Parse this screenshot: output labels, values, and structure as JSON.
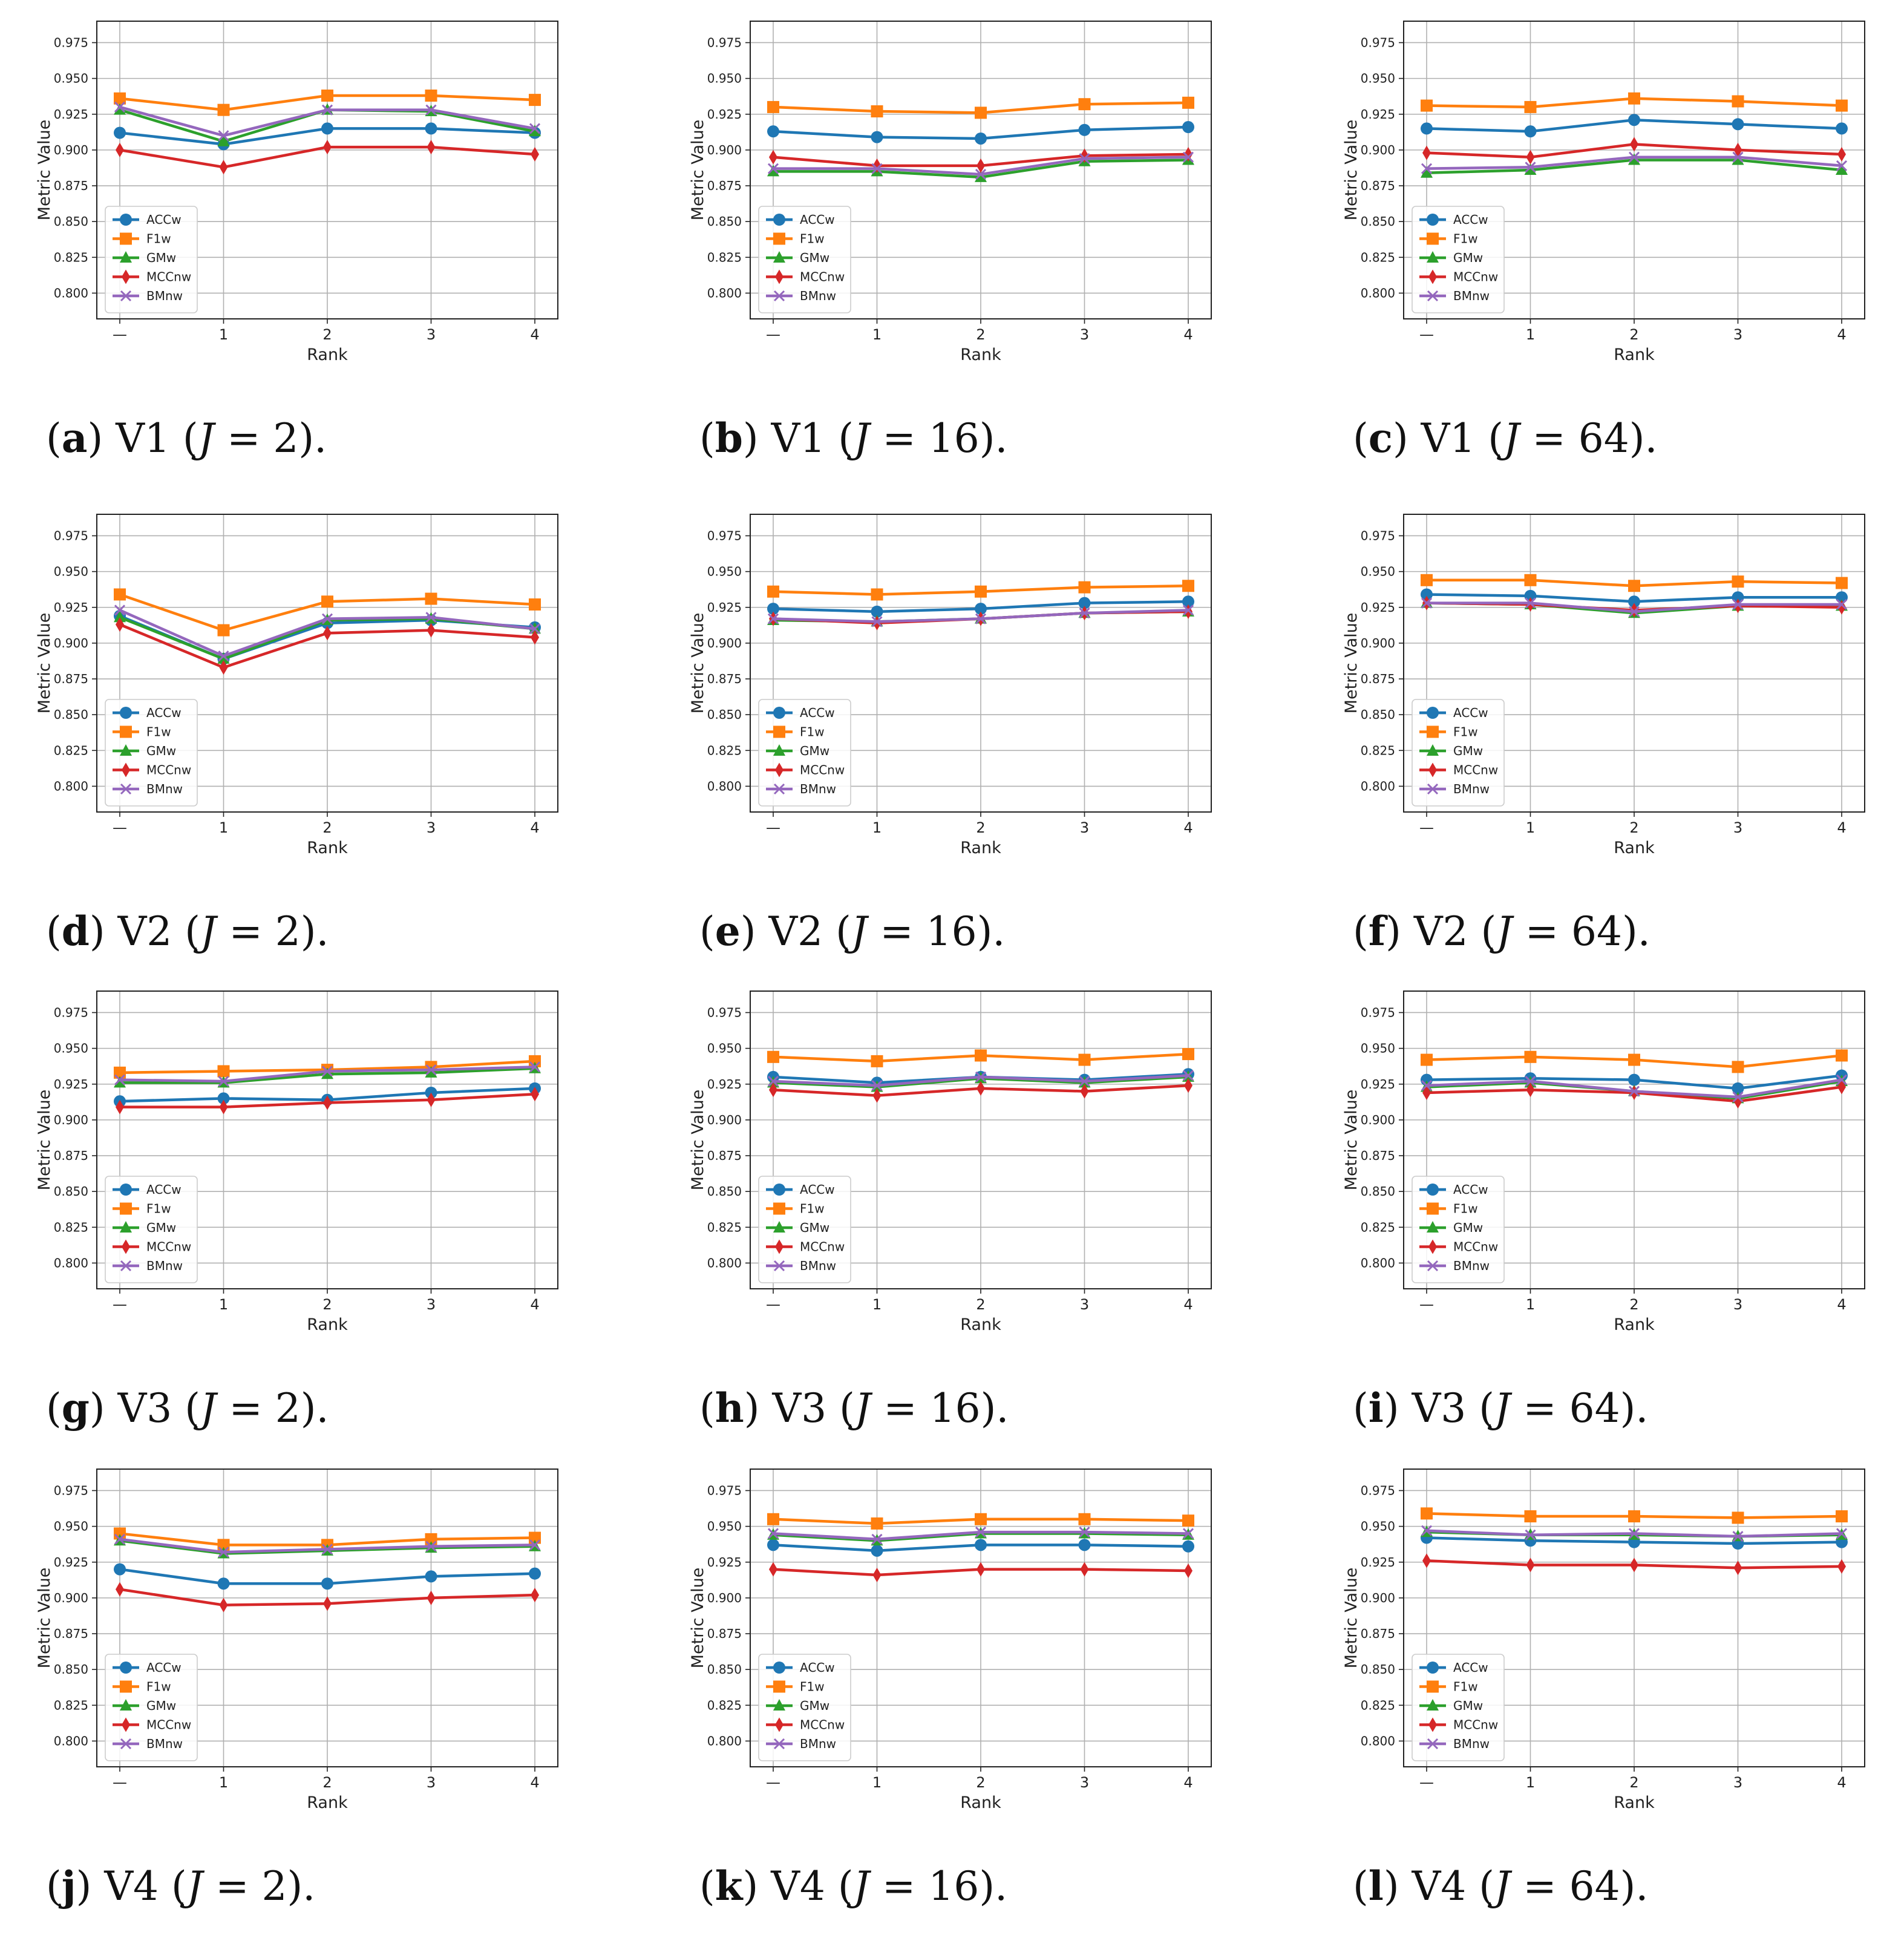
{
  "series_meta": [
    {
      "key": "ACCw",
      "label": "ACCw",
      "color": "#1f77b4",
      "marker": "circle"
    },
    {
      "key": "F1w",
      "label": "F1w",
      "color": "#ff7f0e",
      "marker": "square"
    },
    {
      "key": "GMw",
      "label": "GMw",
      "color": "#2ca02c",
      "marker": "triangle"
    },
    {
      "key": "MCCnw",
      "label": "MCCnw",
      "color": "#d62728",
      "marker": "diamond"
    },
    {
      "key": "BMnw",
      "label": "BMnw",
      "color": "#9467bd",
      "marker": "x"
    }
  ],
  "chart_data": [
    {
      "type": "line",
      "label": "a",
      "variant": "V1",
      "jvar": "J",
      "jval": "2",
      "caption_pre": "V1 (",
      "caption_post": " = 2).",
      "xlabel": "Rank",
      "ylabel": "Metric Value",
      "categories": [
        "—",
        "1",
        "2",
        "3",
        "4"
      ],
      "yticks": [
        "0.800",
        "0.825",
        "0.850",
        "0.875",
        "0.900",
        "0.925",
        "0.950",
        "0.975"
      ],
      "ylim": [
        0.782,
        0.99
      ],
      "legend": "lower-left",
      "grid": true,
      "series": [
        {
          "name": "ACCw",
          "values": [
            0.912,
            0.904,
            0.915,
            0.915,
            0.912
          ]
        },
        {
          "name": "F1w",
          "values": [
            0.936,
            0.928,
            0.938,
            0.938,
            0.935
          ]
        },
        {
          "name": "GMw",
          "values": [
            0.928,
            0.906,
            0.928,
            0.927,
            0.913
          ]
        },
        {
          "name": "MCCnw",
          "values": [
            0.9,
            0.888,
            0.902,
            0.902,
            0.897
          ]
        },
        {
          "name": "BMnw",
          "values": [
            0.93,
            0.91,
            0.928,
            0.928,
            0.915
          ]
        }
      ]
    },
    {
      "type": "line",
      "label": "b",
      "variant": "V1",
      "jvar": "J",
      "jval": "16",
      "caption_pre": "V1 (",
      "caption_post": " = 16).",
      "xlabel": "Rank",
      "ylabel": "Metric Value",
      "categories": [
        "—",
        "1",
        "2",
        "3",
        "4"
      ],
      "yticks": [
        "0.800",
        "0.825",
        "0.850",
        "0.875",
        "0.900",
        "0.925",
        "0.950",
        "0.975"
      ],
      "ylim": [
        0.782,
        0.99
      ],
      "legend": "lower-left",
      "grid": true,
      "series": [
        {
          "name": "ACCw",
          "values": [
            0.913,
            0.909,
            0.908,
            0.914,
            0.916
          ]
        },
        {
          "name": "F1w",
          "values": [
            0.93,
            0.927,
            0.926,
            0.932,
            0.933
          ]
        },
        {
          "name": "GMw",
          "values": [
            0.885,
            0.885,
            0.881,
            0.892,
            0.893
          ]
        },
        {
          "name": "MCCnw",
          "values": [
            0.895,
            0.889,
            0.889,
            0.896,
            0.897
          ]
        },
        {
          "name": "BMnw",
          "values": [
            0.887,
            0.887,
            0.883,
            0.894,
            0.895
          ]
        }
      ]
    },
    {
      "type": "line",
      "label": "c",
      "variant": "V1",
      "jvar": "J",
      "jval": "64",
      "caption_pre": "V1 (",
      "caption_post": " = 64).",
      "xlabel": "Rank",
      "ylabel": "Metric Value",
      "categories": [
        "—",
        "1",
        "2",
        "3",
        "4"
      ],
      "yticks": [
        "0.800",
        "0.825",
        "0.850",
        "0.875",
        "0.900",
        "0.925",
        "0.950",
        "0.975"
      ],
      "ylim": [
        0.782,
        0.99
      ],
      "legend": "lower-left",
      "grid": true,
      "series": [
        {
          "name": "ACCw",
          "values": [
            0.915,
            0.913,
            0.921,
            0.918,
            0.915
          ]
        },
        {
          "name": "F1w",
          "values": [
            0.931,
            0.93,
            0.936,
            0.934,
            0.931
          ]
        },
        {
          "name": "GMw",
          "values": [
            0.884,
            0.886,
            0.893,
            0.893,
            0.886
          ]
        },
        {
          "name": "MCCnw",
          "values": [
            0.898,
            0.895,
            0.904,
            0.9,
            0.897
          ]
        },
        {
          "name": "BMnw",
          "values": [
            0.887,
            0.888,
            0.895,
            0.895,
            0.889
          ]
        }
      ]
    },
    {
      "type": "line",
      "label": "d",
      "variant": "V2",
      "jvar": "J",
      "jval": "2",
      "caption_pre": "V2 (",
      "caption_post": " = 2).",
      "xlabel": "Rank",
      "ylabel": "Metric Value",
      "categories": [
        "—",
        "1",
        "2",
        "3",
        "4"
      ],
      "yticks": [
        "0.800",
        "0.825",
        "0.850",
        "0.875",
        "0.900",
        "0.925",
        "0.950",
        "0.975"
      ],
      "ylim": [
        0.782,
        0.99
      ],
      "legend": "lower-left",
      "grid": true,
      "series": [
        {
          "name": "ACCw",
          "values": [
            0.919,
            0.889,
            0.914,
            0.916,
            0.911
          ]
        },
        {
          "name": "F1w",
          "values": [
            0.934,
            0.909,
            0.929,
            0.931,
            0.927
          ]
        },
        {
          "name": "GMw",
          "values": [
            0.918,
            0.889,
            0.916,
            0.917,
            0.91
          ]
        },
        {
          "name": "MCCnw",
          "values": [
            0.913,
            0.883,
            0.907,
            0.909,
            0.904
          ]
        },
        {
          "name": "BMnw",
          "values": [
            0.923,
            0.891,
            0.917,
            0.918,
            0.91
          ]
        }
      ]
    },
    {
      "type": "line",
      "label": "e",
      "variant": "V2",
      "jvar": "J",
      "jval": "16",
      "caption_pre": "V2 (",
      "caption_post": " = 16).",
      "xlabel": "Rank",
      "ylabel": "Metric Value",
      "categories": [
        "—",
        "1",
        "2",
        "3",
        "4"
      ],
      "yticks": [
        "0.800",
        "0.825",
        "0.850",
        "0.875",
        "0.900",
        "0.925",
        "0.950",
        "0.975"
      ],
      "ylim": [
        0.782,
        0.99
      ],
      "legend": "lower-left",
      "grid": true,
      "series": [
        {
          "name": "ACCw",
          "values": [
            0.924,
            0.922,
            0.924,
            0.928,
            0.929
          ]
        },
        {
          "name": "F1w",
          "values": [
            0.936,
            0.934,
            0.936,
            0.939,
            0.94
          ]
        },
        {
          "name": "GMw",
          "values": [
            0.916,
            0.915,
            0.917,
            0.921,
            0.922
          ]
        },
        {
          "name": "MCCnw",
          "values": [
            0.917,
            0.914,
            0.917,
            0.921,
            0.922
          ]
        },
        {
          "name": "BMnw",
          "values": [
            0.917,
            0.915,
            0.917,
            0.921,
            0.923
          ]
        }
      ]
    },
    {
      "type": "line",
      "label": "f",
      "variant": "V2",
      "jvar": "J",
      "jval": "64",
      "caption_pre": "V2 (",
      "caption_post": " = 64).",
      "xlabel": "Rank",
      "ylabel": "Metric Value",
      "categories": [
        "—",
        "1",
        "2",
        "3",
        "4"
      ],
      "yticks": [
        "0.800",
        "0.825",
        "0.850",
        "0.875",
        "0.900",
        "0.925",
        "0.950",
        "0.975"
      ],
      "ylim": [
        0.782,
        0.99
      ],
      "legend": "lower-left",
      "grid": true,
      "series": [
        {
          "name": "ACCw",
          "values": [
            0.934,
            0.933,
            0.929,
            0.932,
            0.932
          ]
        },
        {
          "name": "F1w",
          "values": [
            0.944,
            0.944,
            0.94,
            0.943,
            0.942
          ]
        },
        {
          "name": "GMw",
          "values": [
            0.928,
            0.927,
            0.921,
            0.926,
            0.926
          ]
        },
        {
          "name": "MCCnw",
          "values": [
            0.928,
            0.927,
            0.923,
            0.926,
            0.925
          ]
        },
        {
          "name": "BMnw",
          "values": [
            0.928,
            0.928,
            0.922,
            0.927,
            0.927
          ]
        }
      ]
    },
    {
      "type": "line",
      "label": "g",
      "variant": "V3",
      "jvar": "J",
      "jval": "2",
      "caption_pre": "V3 (",
      "caption_post": " = 2).",
      "xlabel": "Rank",
      "ylabel": "Metric Value",
      "categories": [
        "—",
        "1",
        "2",
        "3",
        "4"
      ],
      "yticks": [
        "0.800",
        "0.825",
        "0.850",
        "0.875",
        "0.900",
        "0.925",
        "0.950",
        "0.975"
      ],
      "ylim": [
        0.782,
        0.99
      ],
      "legend": "lower-left",
      "grid": true,
      "series": [
        {
          "name": "ACCw",
          "values": [
            0.913,
            0.915,
            0.914,
            0.919,
            0.922
          ]
        },
        {
          "name": "F1w",
          "values": [
            0.933,
            0.934,
            0.935,
            0.937,
            0.941
          ]
        },
        {
          "name": "GMw",
          "values": [
            0.926,
            0.926,
            0.932,
            0.933,
            0.936
          ]
        },
        {
          "name": "MCCnw",
          "values": [
            0.909,
            0.909,
            0.912,
            0.914,
            0.918
          ]
        },
        {
          "name": "BMnw",
          "values": [
            0.928,
            0.927,
            0.934,
            0.935,
            0.937
          ]
        }
      ]
    },
    {
      "type": "line",
      "label": "h",
      "variant": "V3",
      "jvar": "J",
      "jval": "16",
      "caption_pre": "V3 (",
      "caption_post": " = 16).",
      "xlabel": "Rank",
      "ylabel": "Metric Value",
      "categories": [
        "—",
        "1",
        "2",
        "3",
        "4"
      ],
      "yticks": [
        "0.800",
        "0.825",
        "0.850",
        "0.875",
        "0.900",
        "0.925",
        "0.950",
        "0.975"
      ],
      "ylim": [
        0.782,
        0.99
      ],
      "legend": "lower-left",
      "grid": true,
      "series": [
        {
          "name": "ACCw",
          "values": [
            0.93,
            0.926,
            0.93,
            0.928,
            0.932
          ]
        },
        {
          "name": "F1w",
          "values": [
            0.944,
            0.941,
            0.945,
            0.942,
            0.946
          ]
        },
        {
          "name": "GMw",
          "values": [
            0.926,
            0.923,
            0.929,
            0.926,
            0.93
          ]
        },
        {
          "name": "MCCnw",
          "values": [
            0.921,
            0.917,
            0.922,
            0.92,
            0.924
          ]
        },
        {
          "name": "BMnw",
          "values": [
            0.927,
            0.924,
            0.93,
            0.927,
            0.931
          ]
        }
      ]
    },
    {
      "type": "line",
      "label": "i",
      "variant": "V3",
      "jvar": "J",
      "jval": "64",
      "caption_pre": "V3 (",
      "caption_post": " = 64).",
      "xlabel": "Rank",
      "ylabel": "Metric Value",
      "categories": [
        "—",
        "1",
        "2",
        "3",
        "4"
      ],
      "yticks": [
        "0.800",
        "0.825",
        "0.850",
        "0.875",
        "0.900",
        "0.925",
        "0.950",
        "0.975"
      ],
      "ylim": [
        0.782,
        0.99
      ],
      "legend": "lower-left",
      "grid": true,
      "series": [
        {
          "name": "ACCw",
          "values": [
            0.928,
            0.929,
            0.928,
            0.922,
            0.931
          ]
        },
        {
          "name": "F1w",
          "values": [
            0.942,
            0.944,
            0.942,
            0.937,
            0.945
          ]
        },
        {
          "name": "GMw",
          "values": [
            0.923,
            0.926,
            0.92,
            0.915,
            0.927
          ]
        },
        {
          "name": "MCCnw",
          "values": [
            0.919,
            0.921,
            0.919,
            0.913,
            0.923
          ]
        },
        {
          "name": "BMnw",
          "values": [
            0.924,
            0.927,
            0.92,
            0.916,
            0.928
          ]
        }
      ]
    },
    {
      "type": "line",
      "label": "j",
      "variant": "V4",
      "jvar": "J",
      "jval": "2",
      "caption_pre": "V4 (",
      "caption_post": " = 2).",
      "xlabel": "Rank",
      "ylabel": "Metric Value",
      "categories": [
        "—",
        "1",
        "2",
        "3",
        "4"
      ],
      "yticks": [
        "0.800",
        "0.825",
        "0.850",
        "0.875",
        "0.900",
        "0.925",
        "0.950",
        "0.975"
      ],
      "ylim": [
        0.782,
        0.99
      ],
      "legend": "lower-left",
      "grid": true,
      "series": [
        {
          "name": "ACCw",
          "values": [
            0.92,
            0.91,
            0.91,
            0.915,
            0.917
          ]
        },
        {
          "name": "F1w",
          "values": [
            0.945,
            0.937,
            0.937,
            0.941,
            0.942
          ]
        },
        {
          "name": "GMw",
          "values": [
            0.94,
            0.931,
            0.933,
            0.935,
            0.936
          ]
        },
        {
          "name": "MCCnw",
          "values": [
            0.906,
            0.895,
            0.896,
            0.9,
            0.902
          ]
        },
        {
          "name": "BMnw",
          "values": [
            0.941,
            0.932,
            0.934,
            0.936,
            0.937
          ]
        }
      ]
    },
    {
      "type": "line",
      "label": "k",
      "variant": "V4",
      "jvar": "J",
      "jval": "16",
      "caption_pre": "V4 (",
      "caption_post": " = 16).",
      "xlabel": "Rank",
      "ylabel": "Metric Value",
      "categories": [
        "—",
        "1",
        "2",
        "3",
        "4"
      ],
      "yticks": [
        "0.800",
        "0.825",
        "0.850",
        "0.875",
        "0.900",
        "0.925",
        "0.950",
        "0.975"
      ],
      "ylim": [
        0.782,
        0.99
      ],
      "legend": "lower-left",
      "grid": true,
      "series": [
        {
          "name": "ACCw",
          "values": [
            0.937,
            0.933,
            0.937,
            0.937,
            0.936
          ]
        },
        {
          "name": "F1w",
          "values": [
            0.955,
            0.952,
            0.955,
            0.955,
            0.954
          ]
        },
        {
          "name": "GMw",
          "values": [
            0.944,
            0.94,
            0.945,
            0.945,
            0.944
          ]
        },
        {
          "name": "MCCnw",
          "values": [
            0.92,
            0.916,
            0.92,
            0.92,
            0.919
          ]
        },
        {
          "name": "BMnw",
          "values": [
            0.945,
            0.941,
            0.946,
            0.946,
            0.945
          ]
        }
      ]
    },
    {
      "type": "line",
      "label": "l",
      "variant": "V4",
      "jvar": "J",
      "jval": "64",
      "caption_pre": "V4 (",
      "caption_post": " = 64).",
      "xlabel": "Rank",
      "ylabel": "Metric Value",
      "categories": [
        "—",
        "1",
        "2",
        "3",
        "4"
      ],
      "yticks": [
        "0.800",
        "0.825",
        "0.850",
        "0.875",
        "0.900",
        "0.925",
        "0.950",
        "0.975"
      ],
      "ylim": [
        0.782,
        0.99
      ],
      "legend": "lower-left",
      "grid": true,
      "series": [
        {
          "name": "ACCw",
          "values": [
            0.942,
            0.94,
            0.939,
            0.938,
            0.939
          ]
        },
        {
          "name": "F1w",
          "values": [
            0.959,
            0.957,
            0.957,
            0.956,
            0.957
          ]
        },
        {
          "name": "GMw",
          "values": [
            0.946,
            0.944,
            0.944,
            0.943,
            0.944
          ]
        },
        {
          "name": "MCCnw",
          "values": [
            0.926,
            0.923,
            0.923,
            0.921,
            0.922
          ]
        },
        {
          "name": "BMnw",
          "values": [
            0.947,
            0.944,
            0.945,
            0.943,
            0.945
          ]
        }
      ]
    }
  ]
}
